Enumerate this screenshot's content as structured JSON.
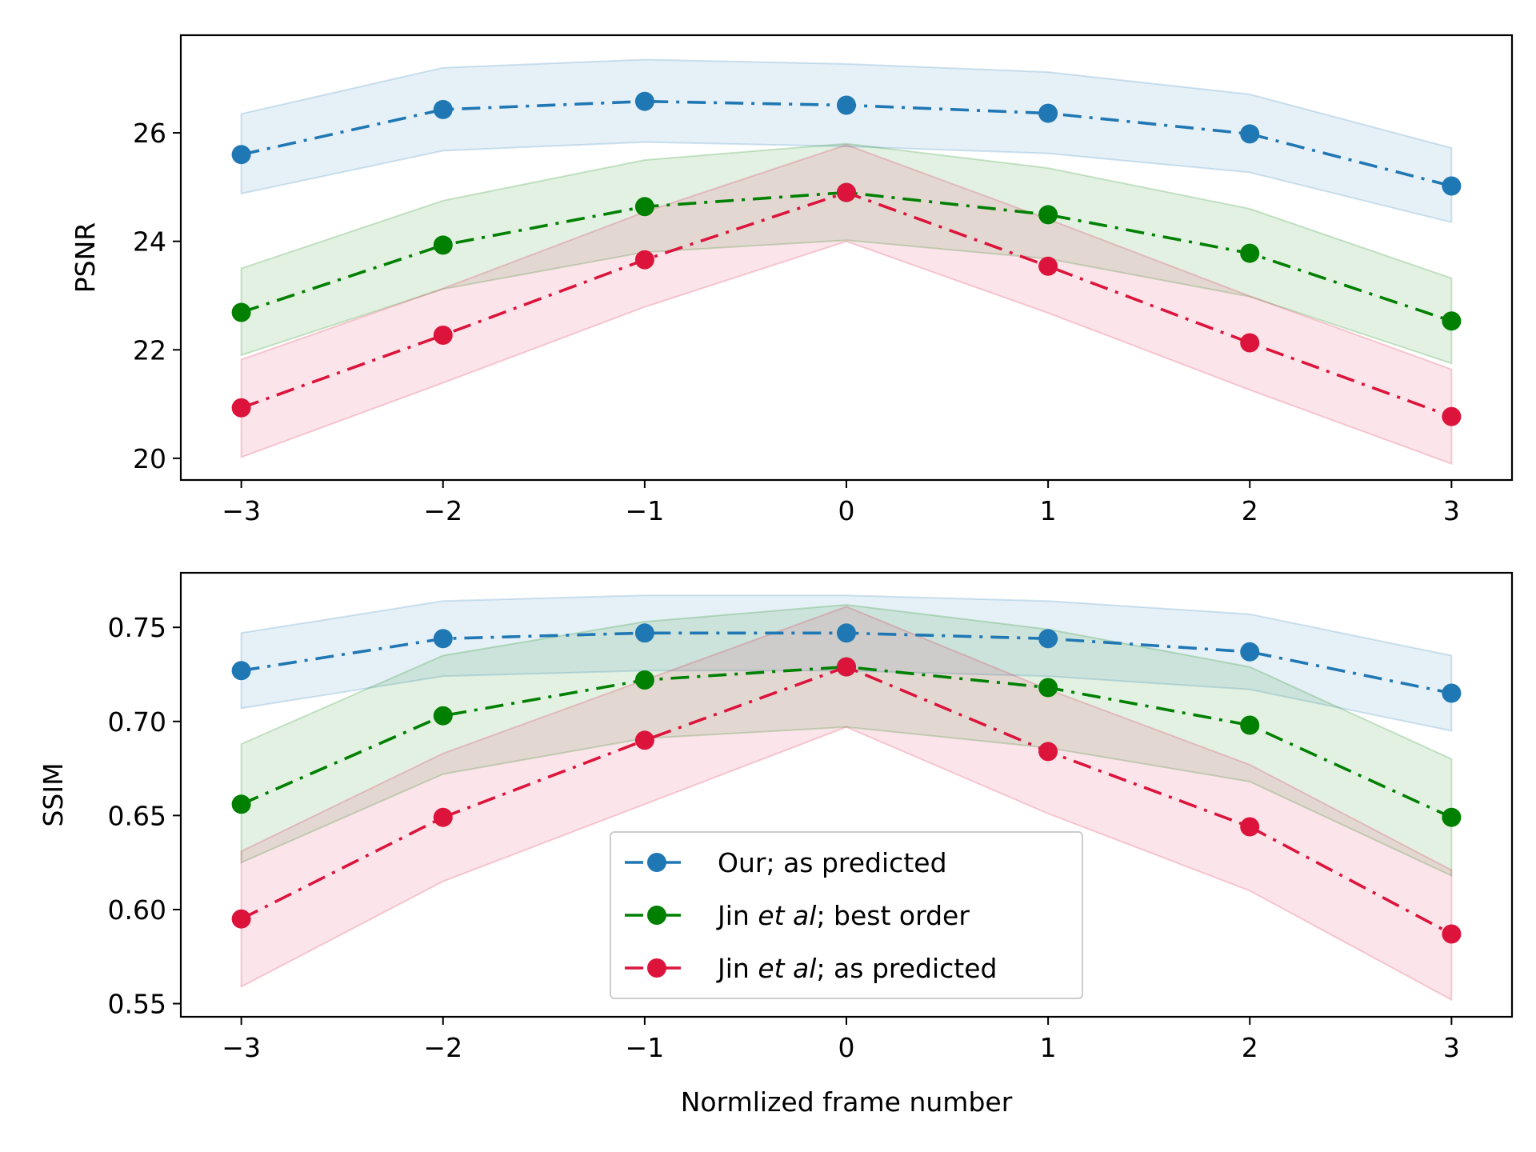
{
  "chart_data": [
    {
      "type": "line",
      "ylabel": "PSNR",
      "xlabel": "",
      "x": [
        -3,
        -2,
        -1,
        0,
        1,
        2,
        3
      ],
      "x_ticks": [
        -3,
        -2,
        -1,
        0,
        1,
        2,
        3
      ],
      "x_tick_labels": [
        "−3",
        "−2",
        "−1",
        "0",
        "1",
        "2",
        "3"
      ],
      "xlim": [
        -3.3,
        3.3
      ],
      "ylim": [
        19.6,
        27.8
      ],
      "y_ticks": [
        20,
        22,
        24,
        26
      ],
      "y_tick_labels": [
        "20",
        "22",
        "24",
        "26"
      ],
      "grid": false,
      "series": [
        {
          "key": "ours",
          "color": "#1f77b4",
          "marker": "circle",
          "linestyle": "dash-dot",
          "values": [
            25.6,
            26.43,
            26.58,
            26.51,
            26.36,
            25.98,
            25.02
          ],
          "upper": [
            26.35,
            27.2,
            27.35,
            27.27,
            27.12,
            26.71,
            25.72
          ],
          "lower": [
            24.88,
            25.67,
            25.83,
            25.75,
            25.62,
            25.27,
            24.35
          ]
        },
        {
          "key": "jin_best",
          "color": "#008000",
          "marker": "circle",
          "linestyle": "dash-dot",
          "values": [
            22.69,
            23.93,
            24.64,
            24.9,
            24.49,
            23.78,
            22.53
          ],
          "upper": [
            23.5,
            24.75,
            25.5,
            25.8,
            25.35,
            24.6,
            23.32
          ],
          "lower": [
            21.9,
            23.12,
            23.8,
            24.02,
            23.68,
            22.98,
            21.75
          ]
        },
        {
          "key": "jin_pred",
          "color": "#dc143c",
          "marker": "circle",
          "linestyle": "dash-dot",
          "values": [
            20.93,
            22.27,
            23.66,
            24.9,
            23.54,
            22.13,
            20.77
          ],
          "upper": [
            21.82,
            23.13,
            24.54,
            25.78,
            24.41,
            22.99,
            21.64
          ],
          "lower": [
            20.02,
            21.39,
            22.79,
            24.0,
            22.68,
            21.26,
            19.9
          ]
        }
      ]
    },
    {
      "type": "line",
      "ylabel": "SSIM",
      "xlabel": "Normlized frame number",
      "x": [
        -3,
        -2,
        -1,
        0,
        1,
        2,
        3
      ],
      "x_ticks": [
        -3,
        -2,
        -1,
        0,
        1,
        2,
        3
      ],
      "x_tick_labels": [
        "−3",
        "−2",
        "−1",
        "0",
        "1",
        "2",
        "3"
      ],
      "xlim": [
        -3.3,
        3.3
      ],
      "ylim": [
        0.543,
        0.779
      ],
      "y_ticks": [
        0.55,
        0.6,
        0.65,
        0.7,
        0.75
      ],
      "y_tick_labels": [
        "0.55",
        "0.60",
        "0.65",
        "0.70",
        "0.75"
      ],
      "grid": false,
      "legend_position": "lower-center",
      "series": [
        {
          "key": "ours",
          "color": "#1f77b4",
          "marker": "circle",
          "linestyle": "dash-dot",
          "values": [
            0.727,
            0.744,
            0.747,
            0.747,
            0.744,
            0.737,
            0.715
          ],
          "upper": [
            0.747,
            0.764,
            0.767,
            0.767,
            0.764,
            0.757,
            0.735
          ],
          "lower": [
            0.707,
            0.724,
            0.727,
            0.727,
            0.724,
            0.717,
            0.695
          ]
        },
        {
          "key": "jin_best",
          "color": "#008000",
          "marker": "circle",
          "linestyle": "dash-dot",
          "values": [
            0.656,
            0.703,
            0.722,
            0.729,
            0.718,
            0.698,
            0.649
          ],
          "upper": [
            0.688,
            0.735,
            0.753,
            0.762,
            0.749,
            0.729,
            0.68
          ],
          "lower": [
            0.625,
            0.672,
            0.691,
            0.697,
            0.686,
            0.668,
            0.618
          ]
        },
        {
          "key": "jin_pred",
          "color": "#dc143c",
          "marker": "circle",
          "linestyle": "dash-dot",
          "values": [
            0.595,
            0.649,
            0.69,
            0.729,
            0.684,
            0.644,
            0.587
          ],
          "upper": [
            0.631,
            0.683,
            0.722,
            0.761,
            0.717,
            0.677,
            0.621
          ],
          "lower": [
            0.559,
            0.615,
            0.656,
            0.697,
            0.651,
            0.61,
            0.552
          ]
        }
      ]
    }
  ],
  "legend": {
    "entries": [
      {
        "key": "ours",
        "color": "#1f77b4",
        "prefix": "Our; as predicted",
        "italic": "",
        "suffix": ""
      },
      {
        "key": "jin_best",
        "color": "#008000",
        "prefix": "Jin ",
        "italic": "et al",
        "suffix": "; best order"
      },
      {
        "key": "jin_pred",
        "color": "#dc143c",
        "prefix": "Jin ",
        "italic": "et al",
        "suffix": "; as predicted"
      }
    ]
  }
}
